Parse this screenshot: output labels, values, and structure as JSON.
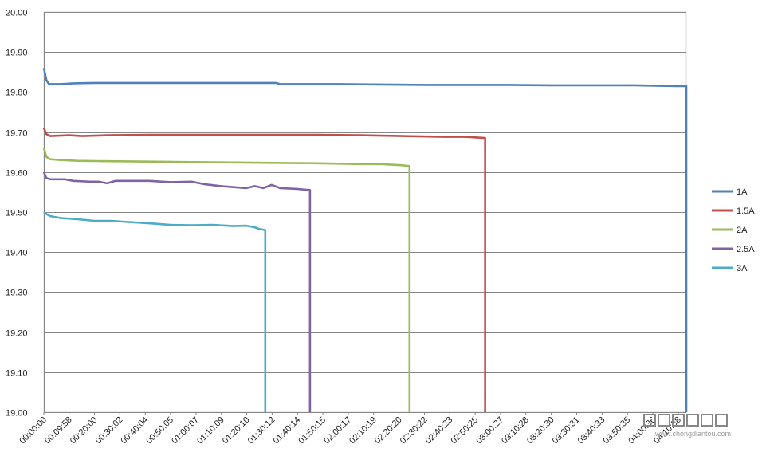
{
  "chart_data": {
    "type": "line",
    "ylim": [
      19.0,
      20.0
    ],
    "y_ticks": [
      "19.00",
      "19.10",
      "19.20",
      "19.30",
      "19.40",
      "19.50",
      "19.60",
      "19.70",
      "19.80",
      "19.90",
      "20.00"
    ],
    "y_tick_values": [
      19.0,
      19.1,
      19.2,
      19.3,
      19.4,
      19.5,
      19.6,
      19.7,
      19.8,
      19.9,
      20.0
    ],
    "x_ticks": [
      "00:00:00",
      "00:09:58",
      "00:20:00",
      "00:30:02",
      "00:40:04",
      "00:50:05",
      "01:00:07",
      "01:10:09",
      "01:20:10",
      "01:30:12",
      "01:40:14",
      "01:50:15",
      "02:00:17",
      "02:10:19",
      "02:20:20",
      "02:30:22",
      "02:40:23",
      "02:50:25",
      "03:00:27",
      "03:10:28",
      "03:20:30",
      "03:30:31",
      "03:40:33",
      "03:50:35",
      "04:00:36",
      "04:10:38"
    ],
    "x_tick_seconds": [
      0,
      598,
      1200,
      1802,
      2404,
      3005,
      3607,
      4209,
      4810,
      5412,
      6014,
      6615,
      7217,
      7819,
      8420,
      9022,
      9623,
      10225,
      10827,
      11428,
      12030,
      12631,
      13233,
      13835,
      14436,
      15038
    ],
    "xlim": [
      0,
      15230
    ],
    "x_unit": "seconds",
    "grid": true,
    "legend_position": "right",
    "series": [
      {
        "name": "1A",
        "color": "#4f81bd",
        "points": [
          [
            0,
            19.86
          ],
          [
            60,
            19.83
          ],
          [
            120,
            19.82
          ],
          [
            400,
            19.82
          ],
          [
            700,
            19.822
          ],
          [
            1200,
            19.823
          ],
          [
            2000,
            19.823
          ],
          [
            3000,
            19.823
          ],
          [
            4000,
            19.823
          ],
          [
            5000,
            19.823
          ],
          [
            5500,
            19.823
          ],
          [
            5600,
            19.82
          ],
          [
            7000,
            19.82
          ],
          [
            8000,
            19.819
          ],
          [
            9000,
            19.818
          ],
          [
            10000,
            19.818
          ],
          [
            11000,
            19.818
          ],
          [
            12000,
            19.817
          ],
          [
            13000,
            19.817
          ],
          [
            14000,
            19.817
          ],
          [
            15000,
            19.815
          ],
          [
            15230,
            19.815
          ]
        ],
        "end_seconds": 15230
      },
      {
        "name": "1.5A",
        "color": "#c0504d",
        "points": [
          [
            0,
            19.71
          ],
          [
            60,
            19.695
          ],
          [
            150,
            19.69
          ],
          [
            600,
            19.692
          ],
          [
            900,
            19.69
          ],
          [
            1500,
            19.692
          ],
          [
            2500,
            19.693
          ],
          [
            3500,
            19.693
          ],
          [
            4500,
            19.693
          ],
          [
            5500,
            19.693
          ],
          [
            6500,
            19.693
          ],
          [
            7500,
            19.692
          ],
          [
            8500,
            19.69
          ],
          [
            9500,
            19.688
          ],
          [
            10000,
            19.688
          ],
          [
            10460,
            19.685
          ]
        ],
        "end_seconds": 10460
      },
      {
        "name": "2A",
        "color": "#9bbb59",
        "points": [
          [
            0,
            19.66
          ],
          [
            60,
            19.638
          ],
          [
            150,
            19.632
          ],
          [
            400,
            19.63
          ],
          [
            800,
            19.628
          ],
          [
            1500,
            19.627
          ],
          [
            2500,
            19.626
          ],
          [
            3500,
            19.625
          ],
          [
            4500,
            19.624
          ],
          [
            5500,
            19.623
          ],
          [
            6500,
            19.622
          ],
          [
            7500,
            19.62
          ],
          [
            8000,
            19.62
          ],
          [
            8500,
            19.617
          ],
          [
            8670,
            19.615
          ]
        ],
        "end_seconds": 8670
      },
      {
        "name": "2.5A",
        "color": "#8064a2",
        "points": [
          [
            0,
            19.6
          ],
          [
            60,
            19.585
          ],
          [
            150,
            19.582
          ],
          [
            500,
            19.582
          ],
          [
            700,
            19.578
          ],
          [
            1100,
            19.576
          ],
          [
            1300,
            19.576
          ],
          [
            1500,
            19.572
          ],
          [
            1700,
            19.578
          ],
          [
            2500,
            19.578
          ],
          [
            3000,
            19.575
          ],
          [
            3500,
            19.576
          ],
          [
            3800,
            19.57
          ],
          [
            4200,
            19.565
          ],
          [
            4800,
            19.56
          ],
          [
            5000,
            19.565
          ],
          [
            5200,
            19.56
          ],
          [
            5400,
            19.568
          ],
          [
            5600,
            19.56
          ],
          [
            6000,
            19.558
          ],
          [
            6310,
            19.555
          ]
        ],
        "end_seconds": 6310
      },
      {
        "name": "3A",
        "color": "#4bacc6",
        "points": [
          [
            0,
            19.5
          ],
          [
            60,
            19.495
          ],
          [
            150,
            19.49
          ],
          [
            400,
            19.485
          ],
          [
            800,
            19.482
          ],
          [
            1200,
            19.478
          ],
          [
            1600,
            19.478
          ],
          [
            2000,
            19.475
          ],
          [
            2500,
            19.472
          ],
          [
            3000,
            19.468
          ],
          [
            3500,
            19.467
          ],
          [
            4000,
            19.468
          ],
          [
            4500,
            19.465
          ],
          [
            4800,
            19.466
          ],
          [
            5000,
            19.462
          ],
          [
            5100,
            19.458
          ],
          [
            5250,
            19.455
          ]
        ],
        "end_seconds": 5250
      }
    ]
  },
  "watermark": {
    "site": "www.chongdiantou.com"
  }
}
